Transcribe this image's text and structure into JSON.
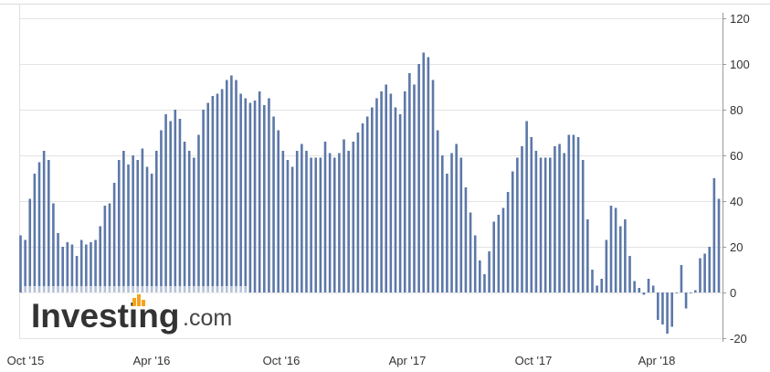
{
  "chart_data": {
    "type": "bar",
    "title": "",
    "xlabel": "",
    "ylabel": "",
    "ylim": [
      -20,
      120
    ],
    "yticks": [
      120,
      100,
      80,
      60,
      40,
      20,
      0,
      -20
    ],
    "xtick_labels": [
      "Oct '15",
      "Apr '16",
      "Oct '16",
      "Apr '17",
      "Oct '17",
      "Apr '18"
    ],
    "bar_color": "#5c78a8",
    "grid": "horizontal",
    "series": [
      {
        "values": [
          25,
          23,
          41,
          52,
          57,
          62,
          58,
          39,
          26,
          20,
          22,
          21,
          16,
          23,
          21,
          22,
          23,
          29,
          38,
          39,
          48,
          58,
          62,
          56,
          60,
          58,
          63,
          55,
          52,
          62,
          71,
          78,
          75,
          80,
          76,
          66,
          62,
          59,
          69,
          80,
          83,
          86,
          87,
          89,
          93,
          95,
          93,
          87,
          85,
          83,
          84,
          88,
          82,
          85,
          77,
          71,
          62,
          58,
          55,
          62,
          65,
          62,
          59,
          59,
          59,
          66,
          61,
          59,
          61,
          67,
          62,
          66,
          70,
          74,
          77,
          81,
          85,
          88,
          91,
          87,
          81,
          78,
          88,
          96,
          91,
          100,
          105,
          103,
          93,
          71,
          60,
          52,
          61,
          65,
          59,
          46,
          35,
          25,
          14,
          8,
          18,
          31,
          34,
          37,
          44,
          53,
          59,
          64,
          75,
          68,
          62,
          59,
          59,
          59,
          64,
          65,
          61,
          69,
          69,
          68,
          58,
          32,
          10,
          3,
          6,
          23,
          38,
          37,
          29,
          32,
          16,
          5,
          2,
          -1,
          6,
          3,
          -12,
          -14,
          -18,
          -15,
          0,
          12,
          -7,
          0,
          1,
          15,
          17,
          20,
          50,
          41
        ]
      }
    ]
  },
  "logo": {
    "text": "Investing",
    "suffix": ".com"
  }
}
